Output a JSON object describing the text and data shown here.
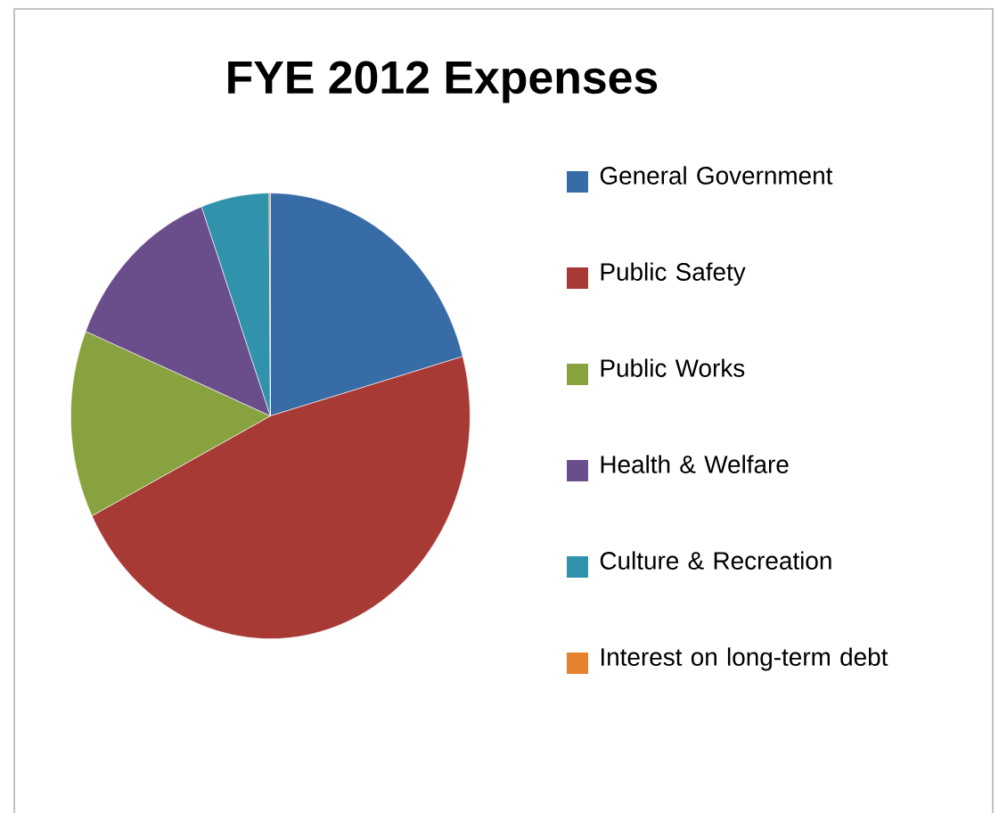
{
  "chart_data": {
    "type": "pie",
    "title": "FYE 2012 Expenses",
    "legend": "right",
    "categories": [
      "General Government",
      "Public Safety",
      "Public Works",
      "Health & Welfare",
      "Culture & Recreation",
      "Interest on long-term debt"
    ],
    "values": [
      20.7,
      46.9,
      13.6,
      13.2,
      5.5,
      0.1
    ],
    "colors": [
      "#376ca6",
      "#a83a36",
      "#87a23f",
      "#6a4e8b",
      "#3192ab",
      "#e4812f"
    ]
  }
}
